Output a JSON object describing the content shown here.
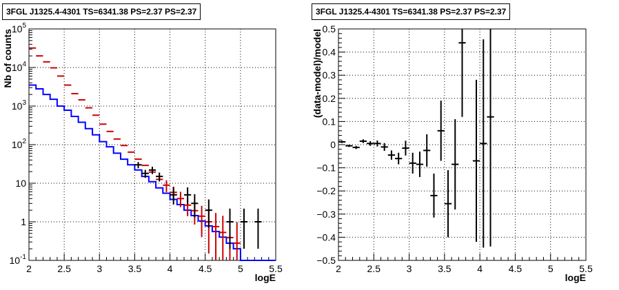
{
  "colors": {
    "data": "#000000",
    "model": "#0000ff",
    "model_points": "#cc0000",
    "grid": "#000000"
  },
  "chart_data": [
    {
      "type": "line",
      "title": "3FGL J1325.4-4301 TS=6341.38 PS=2.37 PS=2.37",
      "xlabel": "logE",
      "ylabel": "Nb of counts",
      "xlim": [
        2,
        5.5
      ],
      "ylim": [
        0.1,
        100000
      ],
      "y_scale": "log",
      "grid": true,
      "x_ticks": [
        "2",
        "2.5",
        "3",
        "3.5",
        "4",
        "4.5",
        "5",
        "5.5"
      ],
      "y_ticks": [
        {
          "v": 0.1,
          "base": "10",
          "exp": "-1"
        },
        {
          "v": 1,
          "base": "1",
          "exp": ""
        },
        {
          "v": 10,
          "base": "10",
          "exp": ""
        },
        {
          "v": 100,
          "base": "10",
          "exp": "2"
        },
        {
          "v": 1000,
          "base": "10",
          "exp": "3"
        },
        {
          "v": 10000,
          "base": "10",
          "exp": "4"
        },
        {
          "v": 100000,
          "base": "10",
          "exp": "5"
        }
      ],
      "model_step": {
        "bin_edges": [
          2.0,
          2.1,
          2.2,
          2.3,
          2.4,
          2.5,
          2.6,
          2.7,
          2.8,
          2.9,
          3.0,
          3.1,
          3.2,
          3.3,
          3.4,
          3.5,
          3.6,
          3.7,
          3.8,
          3.9,
          4.0,
          4.1,
          4.2,
          4.3,
          4.4,
          4.5,
          4.6,
          4.7,
          4.8,
          4.9,
          5.0,
          5.1,
          5.2,
          5.3,
          5.4,
          5.5
        ],
        "values": [
          3500,
          2800,
          2000,
          1500,
          1000,
          780,
          540,
          380,
          260,
          180,
          120,
          88,
          60,
          42,
          30,
          22,
          15,
          11,
          7.6,
          5.5,
          3.8,
          2.8,
          2.0,
          1.45,
          1.05,
          0.78,
          0.56,
          0.4,
          0.28,
          0.2,
          0.1,
          0.1,
          0.1,
          0.1,
          0.1
        ]
      },
      "model_points": {
        "x": [
          2.05,
          2.15,
          2.25,
          2.35,
          2.45,
          2.55,
          2.65,
          2.75,
          2.85,
          2.95,
          3.05,
          3.15,
          3.25,
          3.35,
          3.45,
          3.55,
          3.65,
          3.75,
          3.85,
          3.95,
          4.05,
          4.15,
          4.25,
          4.35,
          4.45,
          4.55,
          4.65,
          4.75,
          4.85,
          4.95
        ],
        "y": [
          32000,
          20000,
          14000,
          9800,
          6000,
          3500,
          2100,
          1450,
          900,
          580,
          340,
          220,
          140,
          95,
          64,
          42,
          29,
          19.5,
          12.6,
          8.9,
          5.8,
          4.0,
          2.7,
          1.95,
          1.4,
          1.0,
          0.75,
          0.53,
          0.39,
          0.28
        ],
        "err_lo": [
          0,
          0,
          0,
          0,
          0,
          0,
          0,
          0,
          0,
          0,
          0,
          0,
          0,
          0,
          0,
          0,
          0,
          0,
          0,
          3.0,
          2.0,
          1.6,
          1.3,
          1.1,
          1.0,
          0.85,
          0.7,
          0.53,
          0.39,
          0.28
        ],
        "err_hi": [
          0,
          0,
          0,
          0,
          0,
          0,
          0,
          0,
          0,
          0,
          0,
          0,
          0,
          0,
          0,
          0,
          0,
          0,
          0,
          3.0,
          2.4,
          2.0,
          1.6,
          1.4,
          1.2,
          1.0,
          0.95,
          0.9,
          0.8,
          0.7
        ]
      },
      "data_points": {
        "x": [
          3.55,
          3.65,
          3.75,
          3.85,
          4.05,
          4.25,
          4.35,
          4.55,
          4.85,
          5.05,
          5.25
        ],
        "y": [
          30,
          18,
          22,
          15,
          5,
          5,
          3,
          2,
          1,
          1,
          1
        ],
        "err_lo": [
          5.5,
          4.2,
          4.7,
          3.9,
          2.2,
          2.2,
          1.7,
          1.3,
          0.8,
          0.8,
          0.8
        ],
        "err_hi": [
          5.5,
          4.2,
          4.7,
          3.9,
          2.8,
          2.8,
          2.2,
          1.8,
          1.2,
          1.2,
          1.2
        ]
      }
    },
    {
      "type": "scatter",
      "title": "3FGL J1325.4-4301 TS=6341.38 PS=2.37 PS=2.37",
      "xlabel": "logE",
      "ylabel": "(data-model)/model",
      "xlim": [
        2,
        5.5
      ],
      "ylim": [
        -0.5,
        0.5
      ],
      "grid": true,
      "x_ticks": [
        "2",
        "2.5",
        "3",
        "3.5",
        "4",
        "4.5",
        "5",
        "5.5"
      ],
      "y_ticks": [
        "-0.5",
        "-0.4",
        "-0.3",
        "-0.2",
        "-0.1",
        "0",
        "0.1",
        "0.2",
        "0.3",
        "0.4",
        "0.5"
      ],
      "points": {
        "x": [
          2.05,
          2.15,
          2.25,
          2.35,
          2.45,
          2.55,
          2.65,
          2.75,
          2.85,
          2.95,
          3.05,
          3.15,
          3.25,
          3.45,
          3.55,
          3.65,
          3.75,
          3.95,
          4.05,
          4.15
        ],
        "y": [
          0.012,
          -0.005,
          -0.012,
          0.015,
          0.005,
          0.005,
          -0.01,
          -0.045,
          -0.06,
          -0.015,
          -0.08,
          -0.085,
          -0.025,
          0.06,
          -0.255,
          -0.085,
          0.44,
          -0.07,
          0.005,
          0.12
        ],
        "err": [
          0.005,
          0.005,
          0.007,
          0.008,
          0.01,
          0.013,
          0.017,
          0.02,
          0.025,
          0.032,
          0.045,
          0.055,
          0.07,
          0.13,
          0.145,
          0.195,
          0.32,
          0.35,
          0.45,
          0.56
        ],
        "xerr": [
          0.05,
          0.05,
          0.05,
          0.05,
          0.05,
          0.05,
          0.05,
          0.05,
          0.05,
          0.05,
          0.05,
          0.05,
          0.05,
          0.05,
          0.05,
          0.05,
          0.05,
          0.05,
          0.05,
          0.05
        ]
      },
      "extra_point": {
        "x": 3.35,
        "y": -0.22,
        "err": 0.095
      }
    }
  ]
}
